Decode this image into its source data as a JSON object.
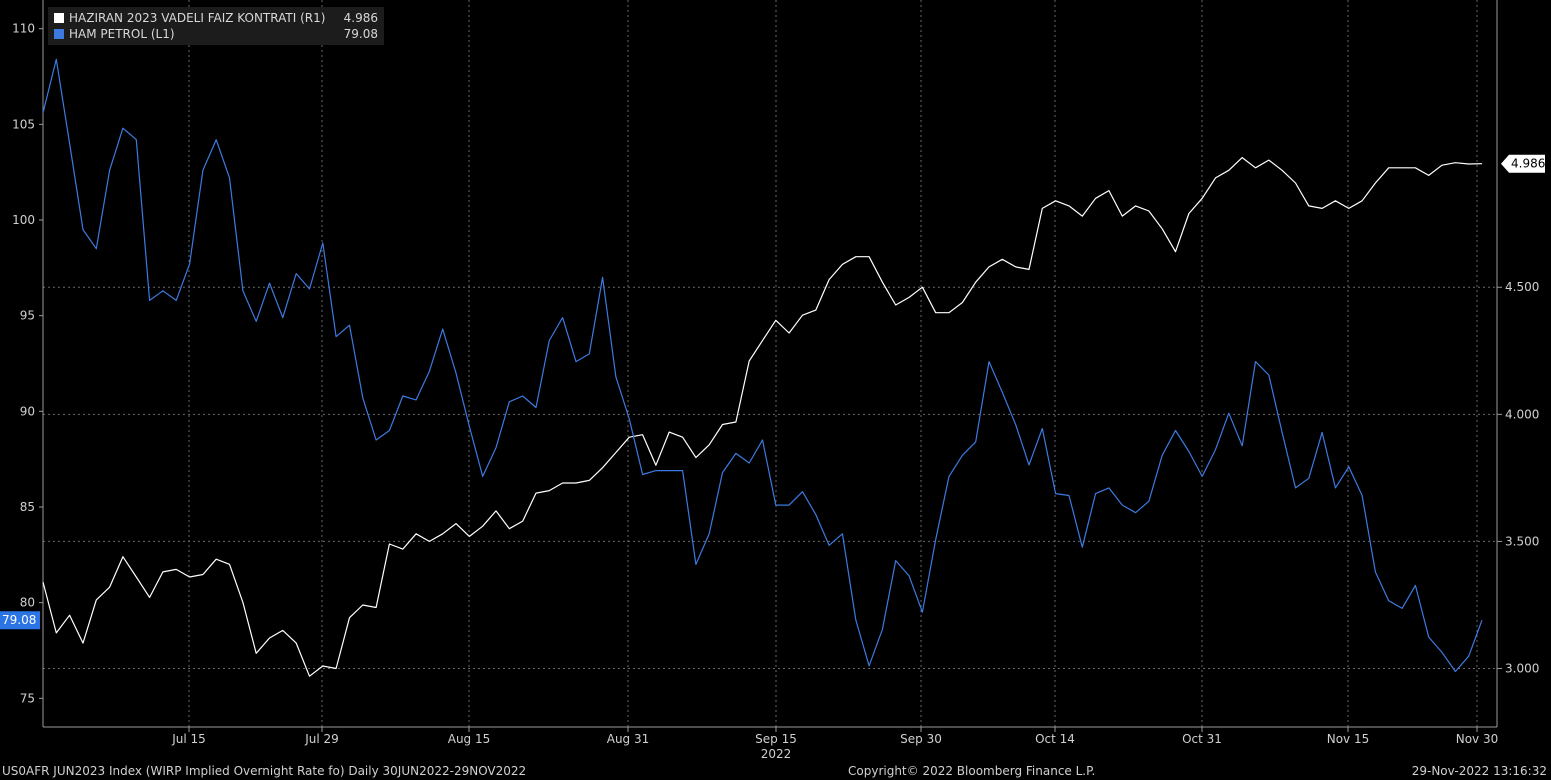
{
  "footer": {
    "index_info": "US0AFR JUN2023 Index (WIRP Implied Overnight Rate fo)  Daily 30JUN2022-29NOV2022",
    "copyright": "Copyright© 2022 Bloomberg Finance L.P.",
    "timestamp": "29-Nov-2022 13:16:32"
  },
  "colors": {
    "background": "#000000",
    "white_series": "#ffffff",
    "blue_series": "#3d7ae0",
    "grid": "#6a6a6a"
  },
  "chart_data": {
    "type": "line",
    "year_label": "2022",
    "x_tick_labels": [
      "Jul 15",
      "Jul 29",
      "Aug 15",
      "Aug 31",
      "Sep 15",
      "Sep 30",
      "Oct 14",
      "Oct 31",
      "Nov 15",
      "Nov 30"
    ],
    "left_axis": {
      "ticks": [
        "75",
        "80",
        "85",
        "90",
        "95",
        "100",
        "105",
        "110"
      ],
      "ylim": [
        73.5,
        111.5
      ]
    },
    "right_axis": {
      "ticks": [
        "3.000",
        "3.500",
        "4.000",
        "4.500"
      ],
      "ylim": [
        2.77,
        5.63
      ]
    },
    "grid": true,
    "legend_placement": "top-left",
    "series": [
      {
        "name": "HAZIRAN 2023 VADELI FAIZ KONTRATI (R1)",
        "axis": "right",
        "last_value": "4.986",
        "color": "#ffffff",
        "values": [
          3.34,
          3.14,
          3.21,
          3.1,
          3.27,
          3.32,
          3.44,
          3.36,
          3.28,
          3.38,
          3.39,
          3.36,
          3.37,
          3.43,
          3.41,
          3.26,
          3.06,
          3.12,
          3.15,
          3.1,
          2.97,
          3.01,
          3.0,
          3.2,
          3.25,
          3.24,
          3.49,
          3.47,
          3.53,
          3.5,
          3.53,
          3.57,
          3.52,
          3.56,
          3.62,
          3.55,
          3.58,
          3.69,
          3.7,
          3.73,
          3.73,
          3.74,
          3.79,
          3.85,
          3.91,
          3.92,
          3.8,
          3.93,
          3.91,
          3.83,
          3.88,
          3.96,
          3.97,
          4.21,
          4.29,
          4.37,
          4.32,
          4.39,
          4.41,
          4.53,
          4.59,
          4.62,
          4.62,
          4.52,
          4.43,
          4.46,
          4.5,
          4.4,
          4.4,
          4.44,
          4.52,
          4.58,
          4.61,
          4.58,
          4.57,
          4.81,
          4.84,
          4.82,
          4.78,
          4.85,
          4.88,
          4.78,
          4.82,
          4.8,
          4.73,
          4.64,
          4.79,
          4.85,
          4.93,
          4.96,
          5.01,
          4.97,
          5.0,
          4.96,
          4.91,
          4.82,
          4.81,
          4.84,
          4.81,
          4.84,
          4.91,
          4.97,
          4.97,
          4.97,
          4.94,
          4.98,
          4.99,
          4.985,
          4.986
        ]
      },
      {
        "name": "HAM PETROL (L1)",
        "axis": "left",
        "last_value": "79.08",
        "color": "#3d7ae0",
        "values": [
          105.6,
          108.4,
          104.0,
          99.5,
          98.5,
          102.6,
          104.8,
          104.2,
          95.8,
          96.3,
          95.8,
          97.7,
          102.6,
          104.2,
          102.2,
          96.3,
          94.7,
          96.7,
          94.9,
          97.2,
          96.4,
          98.8,
          93.9,
          94.5,
          90.7,
          88.5,
          89.0,
          90.8,
          90.6,
          92.1,
          94.3,
          92.0,
          89.2,
          86.6,
          88.1,
          90.5,
          90.8,
          90.2,
          93.7,
          94.9,
          92.6,
          93.0,
          97.0,
          91.8,
          89.6,
          86.7,
          86.9,
          86.9,
          86.9,
          82.0,
          83.6,
          86.8,
          87.8,
          87.3,
          88.5,
          85.1,
          85.1,
          85.8,
          84.6,
          83.0,
          83.6,
          79.1,
          76.7,
          78.6,
          82.2,
          81.4,
          79.5,
          83.3,
          86.6,
          87.7,
          88.4,
          92.6,
          91.0,
          89.3,
          87.2,
          89.1,
          85.7,
          85.6,
          82.9,
          85.7,
          86.0,
          85.1,
          84.7,
          85.3,
          87.7,
          89.0,
          87.9,
          86.6,
          88.0,
          89.9,
          88.2,
          92.6,
          91.9,
          88.9,
          86.0,
          86.5,
          88.9,
          86.0,
          87.1,
          85.6,
          81.6,
          80.1,
          79.7,
          80.9,
          78.2,
          77.4,
          76.4,
          77.2,
          79.08
        ]
      }
    ]
  }
}
